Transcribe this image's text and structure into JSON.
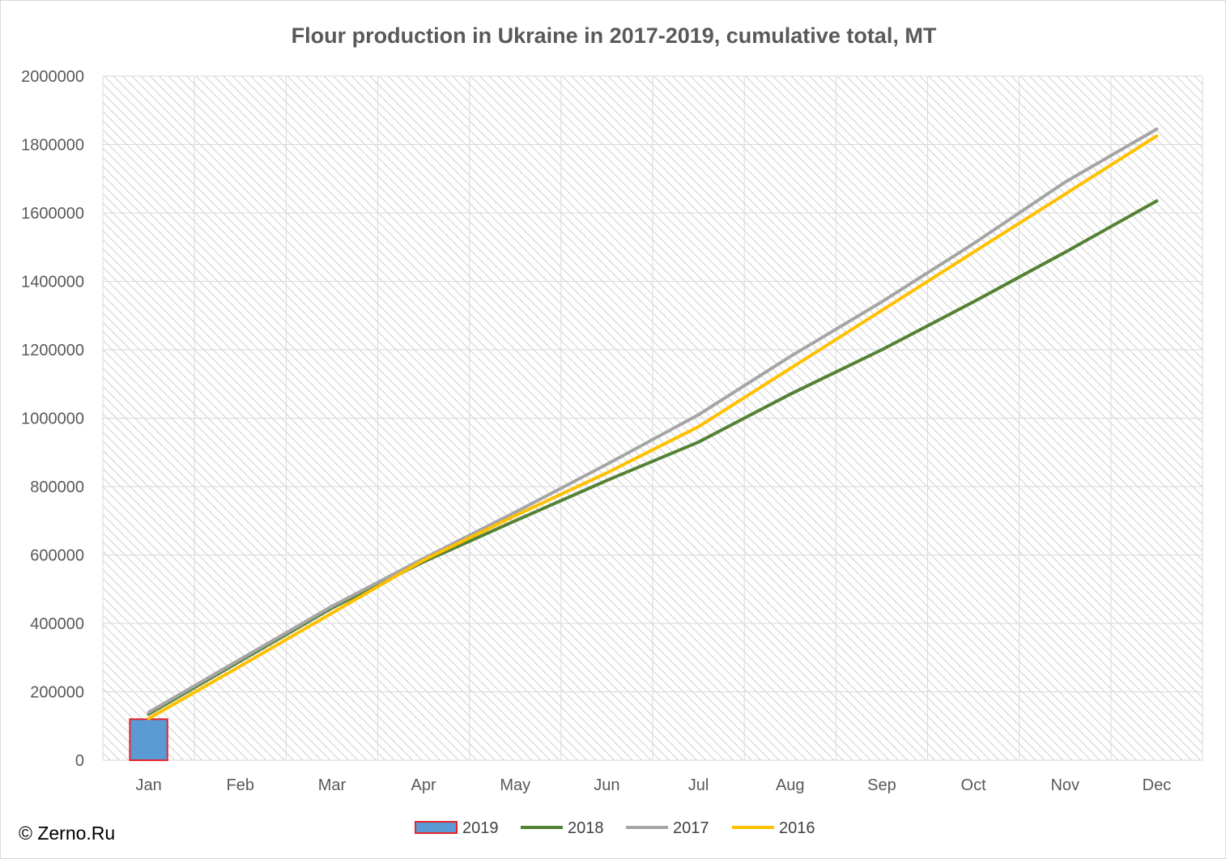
{
  "chart_data": {
    "type": "line",
    "title": "Flour production in Ukraine in 2017-2019, cumulative total, MT",
    "xlabel": "",
    "ylabel": "",
    "categories": [
      "Jan",
      "Feb",
      "Mar",
      "Apr",
      "May",
      "Jun",
      "Jul",
      "Aug",
      "Sep",
      "Oct",
      "Nov",
      "Dec"
    ],
    "ylim": [
      0,
      2000000
    ],
    "yticks": [
      "0",
      "200000",
      "400000",
      "600000",
      "800000",
      "1000000",
      "1200000",
      "1400000",
      "1600000",
      "1800000",
      "2000000"
    ],
    "ytick_values": [
      0,
      200000,
      400000,
      600000,
      800000,
      1000000,
      1200000,
      1400000,
      1600000,
      1800000,
      2000000
    ],
    "grid": true,
    "legend_position": "bottom",
    "series": [
      {
        "name": "2019",
        "kind": "bar",
        "color": "#5B9BD5",
        "border": "#E8232A",
        "values": [
          120000,
          null,
          null,
          null,
          null,
          null,
          null,
          null,
          null,
          null,
          null,
          null
        ]
      },
      {
        "name": "2018",
        "kind": "line",
        "color": "#548235",
        "values": [
          135000,
          290000,
          445000,
          580000,
          700000,
          818000,
          930000,
          1070000,
          1200000,
          1340000,
          1485000,
          1635000
        ]
      },
      {
        "name": "2017",
        "kind": "line",
        "color": "#A5A5A5",
        "values": [
          140000,
          295000,
          450000,
          590000,
          725000,
          865000,
          1010000,
          1180000,
          1340000,
          1510000,
          1690000,
          1845000
        ]
      },
      {
        "name": "2016",
        "kind": "line",
        "color": "#FFC000",
        "values": [
          122000,
          275000,
          430000,
          585000,
          715000,
          840000,
          975000,
          1145000,
          1315000,
          1485000,
          1655000,
          1825000
        ]
      }
    ]
  },
  "credit": "© Zerno.Ru"
}
